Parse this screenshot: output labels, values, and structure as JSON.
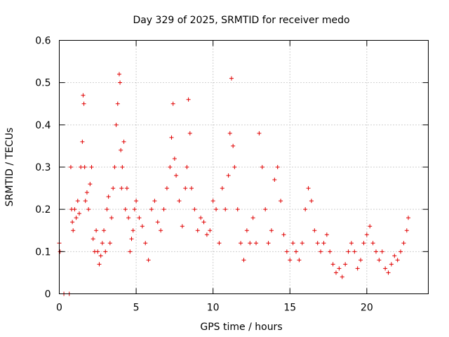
{
  "chart_data": {
    "type": "scatter",
    "title": "Day 329 of 2025, SRMTID for receiver medo",
    "xlabel": "GPS time / hours",
    "ylabel": "SRMTID / TECUs",
    "xlim": [
      0,
      24
    ],
    "ylim": [
      0,
      0.6
    ],
    "x_ticks": [
      0,
      5,
      10,
      15,
      20
    ],
    "x_tick_labels": [
      "0",
      "5",
      "10",
      "15",
      "20"
    ],
    "y_ticks": [
      0,
      0.1,
      0.2,
      0.3,
      0.4,
      0.5,
      0.6
    ],
    "y_tick_labels": [
      "0",
      "0.1",
      "0.2",
      "0.3",
      "0.4",
      "0.5",
      "0.6"
    ],
    "grid": true,
    "marker": "plus",
    "color": "#e00000",
    "series": [
      {
        "name": "SRMTID",
        "x": [
          0.0,
          0.05,
          0.3,
          0.65,
          0.75,
          0.8,
          0.85,
          0.9,
          1.0,
          1.1,
          1.2,
          1.3,
          1.4,
          1.5,
          1.55,
          1.6,
          1.65,
          1.7,
          1.8,
          1.9,
          2.0,
          2.1,
          2.2,
          2.3,
          2.4,
          2.5,
          2.6,
          2.7,
          2.8,
          2.9,
          3.0,
          3.1,
          3.2,
          3.3,
          3.4,
          3.5,
          3.6,
          3.7,
          3.8,
          3.9,
          3.95,
          4.0,
          4.05,
          4.1,
          4.2,
          4.3,
          4.4,
          4.5,
          4.6,
          4.7,
          4.8,
          4.9,
          5.0,
          5.2,
          5.4,
          5.6,
          5.8,
          6.0,
          6.2,
          6.4,
          6.6,
          6.8,
          7.0,
          7.2,
          7.3,
          7.4,
          7.5,
          7.6,
          7.8,
          8.0,
          8.2,
          8.3,
          8.4,
          8.5,
          8.6,
          8.8,
          9.0,
          9.2,
          9.4,
          9.6,
          9.8,
          10.0,
          10.2,
          10.4,
          10.6,
          10.8,
          11.0,
          11.1,
          11.2,
          11.3,
          11.4,
          11.6,
          11.8,
          12.0,
          12.2,
          12.4,
          12.6,
          12.8,
          13.0,
          13.2,
          13.4,
          13.6,
          13.8,
          14.0,
          14.2,
          14.4,
          14.6,
          14.8,
          15.0,
          15.2,
          15.4,
          15.6,
          15.8,
          16.0,
          16.2,
          16.4,
          16.6,
          16.8,
          17.0,
          17.2,
          17.4,
          17.6,
          17.8,
          18.0,
          18.2,
          18.4,
          18.6,
          18.8,
          19.0,
          19.2,
          19.4,
          19.6,
          19.8,
          20.0,
          20.2,
          20.4,
          20.6,
          20.8,
          21.0,
          21.2,
          21.4,
          21.6,
          21.8,
          22.0,
          22.2,
          22.4,
          22.6,
          22.7
        ],
        "y": [
          0.12,
          0.1,
          0.0,
          0.0,
          0.3,
          0.2,
          0.17,
          0.15,
          0.2,
          0.18,
          0.22,
          0.19,
          0.3,
          0.36,
          0.47,
          0.45,
          0.3,
          0.22,
          0.24,
          0.2,
          0.26,
          0.3,
          0.13,
          0.1,
          0.15,
          0.1,
          0.07,
          0.09,
          0.12,
          0.15,
          0.1,
          0.2,
          0.23,
          0.12,
          0.18,
          0.25,
          0.3,
          0.4,
          0.45,
          0.52,
          0.5,
          0.34,
          0.25,
          0.3,
          0.36,
          0.2,
          0.25,
          0.18,
          0.1,
          0.13,
          0.15,
          0.2,
          0.22,
          0.18,
          0.16,
          0.12,
          0.08,
          0.2,
          0.22,
          0.17,
          0.15,
          0.2,
          0.25,
          0.3,
          0.37,
          0.45,
          0.32,
          0.28,
          0.22,
          0.16,
          0.25,
          0.3,
          0.46,
          0.38,
          0.25,
          0.2,
          0.15,
          0.18,
          0.17,
          0.14,
          0.15,
          0.22,
          0.2,
          0.12,
          0.25,
          0.2,
          0.28,
          0.38,
          0.51,
          0.35,
          0.3,
          0.2,
          0.12,
          0.08,
          0.15,
          0.12,
          0.18,
          0.12,
          0.38,
          0.3,
          0.2,
          0.12,
          0.15,
          0.27,
          0.3,
          0.22,
          0.14,
          0.1,
          0.08,
          0.12,
          0.1,
          0.08,
          0.12,
          0.2,
          0.25,
          0.22,
          0.15,
          0.12,
          0.1,
          0.12,
          0.14,
          0.1,
          0.07,
          0.05,
          0.06,
          0.04,
          0.07,
          0.1,
          0.12,
          0.1,
          0.06,
          0.08,
          0.12,
          0.14,
          0.16,
          0.12,
          0.1,
          0.08,
          0.1,
          0.06,
          0.05,
          0.07,
          0.09,
          0.08,
          0.1,
          0.12,
          0.15,
          0.18
        ]
      }
    ]
  }
}
